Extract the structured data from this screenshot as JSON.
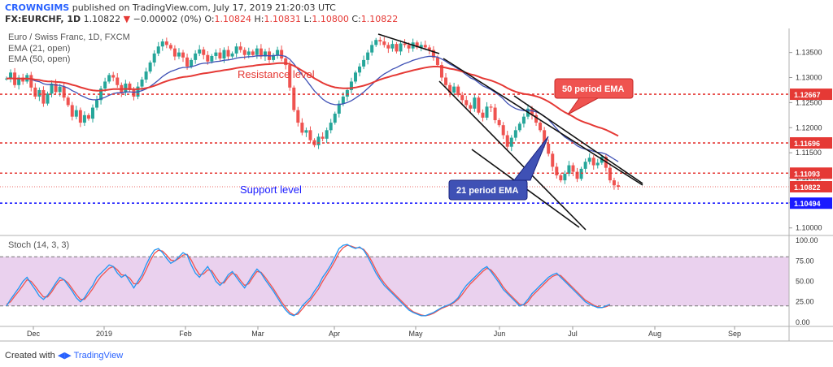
{
  "header": {
    "author": "CROWNGIMS",
    "published_text": "published on TradingView.com, July 17, 2019 21:20:03 UTC",
    "symbol": "FX:EURCHF, 1D",
    "last": "1.10822",
    "change": "−0.00002 (0%)",
    "open_label": "O:",
    "open": "1.10824",
    "high_label": "H:",
    "high": "1.10831",
    "low_label": "L:",
    "low": "1.10800",
    "close_label": "C:",
    "close": "1.10822"
  },
  "legend": {
    "title": "Euro / Swiss Franc, 1D, FXCM",
    "ema21": "EMA (21, open)",
    "ema50": "EMA (50, open)",
    "stoch": "Stoch (14, 3, 3)"
  },
  "footer": {
    "created_with": "Created with",
    "brand": "TradingView"
  },
  "colors": {
    "up": "#26a69a",
    "down": "#ef5350",
    "ema21": "#3f51b5",
    "ema50": "#e53935",
    "resistance": "#e53935",
    "support": "#1a1aff",
    "stoch_band": "#e1bee7",
    "stoch_k": "#2196f3",
    "stoch_d": "#ef5350"
  },
  "chart_data": [
    {
      "type": "candlestick",
      "title": "Euro / Swiss Franc, 1D, FXCM",
      "x_labels": [
        "Dec",
        "2019",
        "Feb",
        "Mar",
        "Apr",
        "May",
        "Jun",
        "Jul",
        "Aug",
        "Sep"
      ],
      "y_ticks": [
        "1.13500",
        "1.13000",
        "1.12500",
        "1.12000",
        "1.11500",
        "1.11000",
        "1.10500",
        "1.10000"
      ],
      "ylim": [
        1.0985,
        1.1398
      ],
      "price_labels": [
        {
          "text": "1.12667",
          "value": 1.12667,
          "color": "#e53935"
        },
        {
          "text": "1.11696",
          "value": 1.11696,
          "color": "#e53935"
        },
        {
          "text": "1.11093",
          "value": 1.11093,
          "color": "#e53935"
        },
        {
          "text": "1.10822",
          "value": 1.10822,
          "color": "#e53935"
        },
        {
          "text": "1.10494",
          "value": 1.10494,
          "color": "#1a1aff"
        }
      ],
      "horizontal_levels": [
        {
          "value": 1.12667,
          "color": "#e53935",
          "style": "dotted"
        },
        {
          "value": 1.11696,
          "color": "#e53935",
          "style": "dotted"
        },
        {
          "value": 1.11093,
          "color": "#e53935",
          "style": "dotted"
        },
        {
          "value": 1.10494,
          "color": "#1a1aff",
          "style": "dotted"
        }
      ],
      "annotations": [
        {
          "text": "Resistance level",
          "color": "#e53935"
        },
        {
          "text": "Support level",
          "color": "#1a1aff"
        },
        {
          "text": "50 period EMA",
          "box_color": "#ef5350"
        },
        {
          "text": "21 period EMA",
          "box_color": "#3f51b5"
        }
      ],
      "closes": [
        1.1298,
        1.131,
        1.1285,
        1.13,
        1.1292,
        1.1305,
        1.128,
        1.1262,
        1.1275,
        1.1248,
        1.1268,
        1.1288,
        1.1271,
        1.1282,
        1.126,
        1.1245,
        1.1222,
        1.1235,
        1.121,
        1.1225,
        1.1218,
        1.124,
        1.1255,
        1.1278,
        1.1292,
        1.1305,
        1.13,
        1.1285,
        1.127,
        1.1288,
        1.1275,
        1.1262,
        1.1282,
        1.1296,
        1.1312,
        1.133,
        1.1348,
        1.1362,
        1.1372,
        1.1365,
        1.1358,
        1.1342,
        1.135,
        1.134,
        1.1322,
        1.1335,
        1.1348,
        1.1356,
        1.1345,
        1.1332,
        1.1343,
        1.135,
        1.1338,
        1.1355,
        1.1342,
        1.1348,
        1.1362,
        1.1355,
        1.1345,
        1.1352,
        1.1345,
        1.1358,
        1.1342,
        1.1352,
        1.1335,
        1.1345,
        1.1355,
        1.1338,
        1.1325,
        1.128,
        1.1235,
        1.121,
        1.119,
        1.1195,
        1.1175,
        1.1165,
        1.1182,
        1.1178,
        1.1195,
        1.121,
        1.1228,
        1.1248,
        1.1262,
        1.1275,
        1.1292,
        1.131,
        1.1322,
        1.1335,
        1.135,
        1.1365,
        1.1375,
        1.1372,
        1.1365,
        1.1358,
        1.1367,
        1.1352,
        1.1368,
        1.1365,
        1.1358,
        1.137,
        1.136,
        1.1365,
        1.136,
        1.1355,
        1.134,
        1.1325,
        1.13,
        1.1285,
        1.127,
        1.1282,
        1.1265,
        1.1255,
        1.1245,
        1.1238,
        1.126,
        1.123,
        1.122,
        1.1242,
        1.124,
        1.1215,
        1.1205,
        1.1185,
        1.1162,
        1.118,
        1.1195,
        1.1208,
        1.1222,
        1.1238,
        1.1225,
        1.121,
        1.1195,
        1.1168,
        1.1148,
        1.1122,
        1.1105,
        1.1095,
        1.1108,
        1.1125,
        1.1112,
        1.1098,
        1.1118,
        1.1132,
        1.114,
        1.1125,
        1.113,
        1.1142,
        1.112,
        1.1095,
        1.1085,
        1.1082
      ]
    },
    {
      "type": "line",
      "title": "Stoch (14, 3, 3)",
      "y_ticks": [
        "100.00",
        "75.00",
        "50.00",
        "25.00",
        "0.00"
      ],
      "ylim": [
        -5,
        105
      ],
      "band": [
        20,
        80
      ],
      "series": [
        {
          "name": "K",
          "values": [
            20,
            28,
            35,
            42,
            50,
            55,
            47,
            40,
            32,
            28,
            33,
            40,
            48,
            55,
            52,
            45,
            38,
            30,
            25,
            30,
            38,
            45,
            55,
            60,
            65,
            70,
            68,
            60,
            55,
            58,
            50,
            42,
            50,
            58,
            70,
            80,
            88,
            90,
            85,
            78,
            72,
            75,
            80,
            85,
            82,
            70,
            60,
            55,
            62,
            68,
            60,
            50,
            45,
            50,
            58,
            62,
            55,
            48,
            42,
            50,
            58,
            65,
            60,
            52,
            45,
            38,
            30,
            22,
            15,
            10,
            8,
            12,
            20,
            25,
            30,
            38,
            45,
            55,
            62,
            70,
            80,
            90,
            94,
            95,
            92,
            90,
            92,
            88,
            80,
            70,
            60,
            52,
            45,
            40,
            35,
            30,
            25,
            20,
            15,
            12,
            10,
            8,
            8,
            10,
            12,
            15,
            18,
            20,
            22,
            25,
            30,
            38,
            45,
            50,
            55,
            60,
            65,
            68,
            62,
            55,
            48,
            40,
            35,
            30,
            25,
            20,
            22,
            28,
            35,
            40,
            45,
            50,
            55,
            58,
            60,
            55,
            50,
            45,
            40,
            35,
            30,
            25,
            22,
            20,
            18,
            18,
            20,
            22
          ]
        },
        {
          "name": "D",
          "values": [
            22,
            25,
            32,
            38,
            45,
            52,
            50,
            44,
            37,
            31,
            31,
            37,
            45,
            51,
            52,
            48,
            41,
            34,
            28,
            28,
            34,
            41,
            49,
            56,
            61,
            66,
            68,
            64,
            58,
            57,
            54,
            47,
            47,
            54,
            64,
            75,
            84,
            88,
            87,
            82,
            76,
            75,
            78,
            82,
            83,
            76,
            66,
            58,
            59,
            64,
            63,
            55,
            48,
            48,
            55,
            60,
            58,
            51,
            45,
            47,
            55,
            62,
            61,
            55,
            48,
            41,
            33,
            25,
            18,
            12,
            9,
            10,
            16,
            22,
            27,
            34,
            41,
            50,
            58,
            66,
            75,
            85,
            91,
            94,
            93,
            91,
            91,
            89,
            83,
            74,
            64,
            55,
            48,
            42,
            37,
            32,
            27,
            22,
            17,
            13,
            11,
            9,
            8,
            9,
            11,
            14,
            17,
            19,
            21,
            24,
            28,
            34,
            41,
            47,
            52,
            57,
            62,
            66,
            64,
            58,
            51,
            43,
            37,
            32,
            27,
            22,
            21,
            25,
            32,
            37,
            42,
            47,
            52,
            56,
            58,
            57,
            52,
            47,
            42,
            37,
            32,
            27,
            24,
            21,
            19,
            18,
            19,
            21
          ]
        }
      ]
    }
  ]
}
